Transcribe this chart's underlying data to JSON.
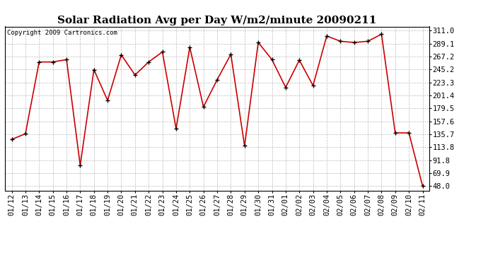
{
  "title": "Solar Radiation Avg per Day W/m2/minute 20090211",
  "copyright": "Copyright 2009 Cartronics.com",
  "dates": [
    "01/12",
    "01/13",
    "01/14",
    "01/15",
    "01/16",
    "01/17",
    "01/18",
    "01/19",
    "01/20",
    "01/21",
    "01/22",
    "01/23",
    "01/24",
    "01/25",
    "01/26",
    "01/27",
    "01/28",
    "01/29",
    "01/30",
    "01/31",
    "02/01",
    "02/02",
    "02/03",
    "02/04",
    "02/05",
    "02/06",
    "02/07",
    "02/08",
    "02/09",
    "02/10",
    "02/11"
  ],
  "values": [
    127.0,
    136.5,
    258.0,
    258.0,
    262.0,
    83.0,
    245.0,
    193.0,
    270.0,
    236.0,
    258.0,
    275.0,
    145.0,
    283.0,
    182.0,
    228.0,
    271.0,
    116.0,
    291.0,
    262.0,
    215.0,
    261.0,
    218.0,
    302.0,
    293.0,
    291.0,
    293.0,
    305.0,
    138.0,
    138.0,
    48.0
  ],
  "yticks": [
    48.0,
    69.9,
    91.8,
    113.8,
    135.7,
    157.6,
    179.5,
    201.4,
    223.3,
    245.2,
    267.2,
    289.1,
    311.0
  ],
  "line_color": "#cc0000",
  "marker_color": "#000000",
  "bg_color": "#ffffff",
  "grid_color": "#bbbbbb",
  "title_fontsize": 11,
  "copyright_fontsize": 6.5,
  "tick_fontsize": 7.5
}
